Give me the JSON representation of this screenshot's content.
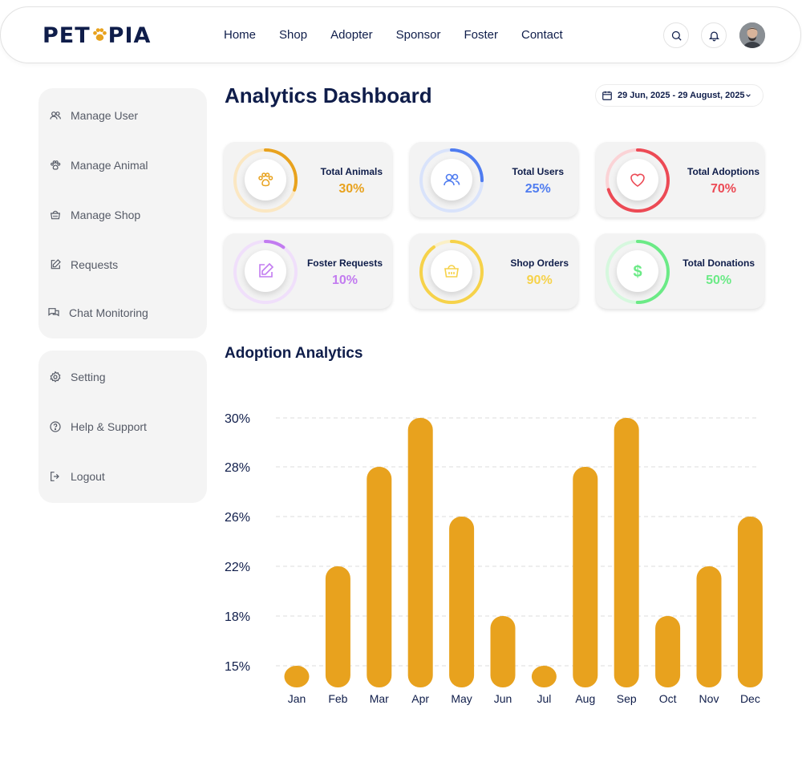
{
  "app": {
    "logo": "PET",
    "logo_tail": "PIA"
  },
  "nav": {
    "items": [
      "Home",
      "Shop",
      "Adopter",
      "Sponsor",
      "Foster",
      "Contact"
    ]
  },
  "header_icons": [
    "search-icon",
    "bell-icon",
    "avatar"
  ],
  "sidebar": {
    "main": [
      {
        "label": "Manage User",
        "icon": "users-icon"
      },
      {
        "label": "Manage Animal",
        "icon": "paw-icon"
      },
      {
        "label": "Manage Shop",
        "icon": "basket-icon"
      },
      {
        "label": "Requests",
        "icon": "edit-icon"
      },
      {
        "label": "Chat Monitoring",
        "icon": "chat-icon"
      }
    ],
    "secondary": [
      {
        "label": "Setting",
        "icon": "gear-icon"
      },
      {
        "label": "Help & Support",
        "icon": "help-icon"
      },
      {
        "label": "Logout",
        "icon": "logout-icon"
      }
    ]
  },
  "main": {
    "title": "Analytics Dashboard",
    "date_range": "29 Jun, 2025 - 29 August, 2025",
    "stats": [
      {
        "label": "Total Animals",
        "value": "30%",
        "percent": 30,
        "color": "#e8a21e",
        "track": "#fbe7c2",
        "icon": "paw-icon"
      },
      {
        "label": "Total Users",
        "value": "25%",
        "percent": 25,
        "color": "#4f7cf0",
        "track": "#d9e3fb",
        "icon": "users-icon"
      },
      {
        "label": "Total Adoptions",
        "value": "70%",
        "percent": 70,
        "color": "#ec4a55",
        "track": "#fbd3d6",
        "icon": "heart-icon"
      },
      {
        "label": "Foster Requests",
        "value": "10%",
        "percent": 10,
        "color": "#c27bf0",
        "track": "#f0dffb",
        "icon": "edit-icon"
      },
      {
        "label": "Shop Orders",
        "value": "90%",
        "percent": 90,
        "color": "#f6d24a",
        "track": "#fbf0c6",
        "icon": "basket-icon"
      },
      {
        "label": "Total Donations",
        "value": "50%",
        "percent": 50,
        "color": "#6bea86",
        "track": "#d6f8de",
        "icon": "dollar-icon"
      }
    ],
    "section_title": "Adoption Analytics"
  },
  "chart_data": {
    "type": "bar",
    "title": "",
    "categories": [
      "Jan",
      "Feb",
      "Mar",
      "Apr",
      "May",
      "Jun",
      "Jul",
      "Aug",
      "Sep",
      "Oct",
      "Nov",
      "Dec"
    ],
    "y_ticks": [
      "15%",
      "18%",
      "22%",
      "26%",
      "28%",
      "30%"
    ],
    "values": [
      15,
      22,
      28,
      30,
      26,
      18,
      15,
      28,
      30,
      18,
      22,
      26
    ],
    "bar_color": "#e8a21e",
    "grid": "dashed horizontal"
  }
}
